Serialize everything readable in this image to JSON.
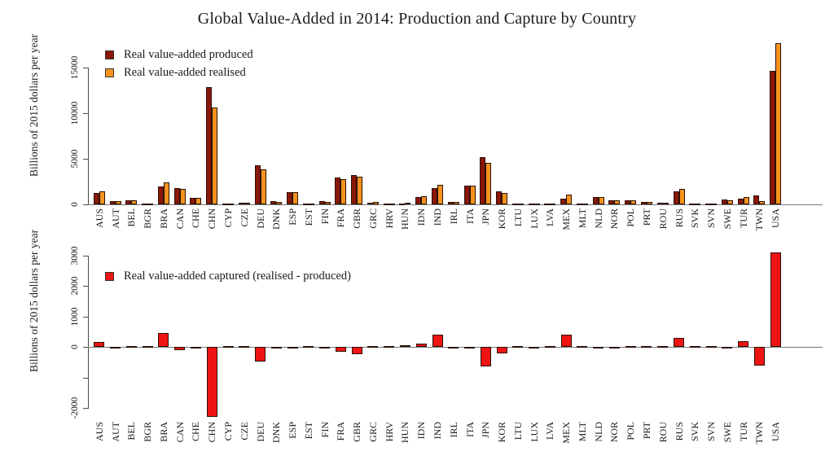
{
  "title": "Global Value-Added in 2014: Production and Capture by Country",
  "colors": {
    "produced": "#8A1708",
    "realised": "#F6921E",
    "captured": "#EE1414",
    "bar_outline": "#2b1105",
    "axis": "#4a4a4a"
  },
  "chart_data": [
    {
      "type": "bar",
      "title": "",
      "xlabel": "",
      "ylabel": "Billions of 2015 dollars per year",
      "ylim": [
        0,
        15000
      ],
      "grid": false,
      "legend_position": "top-left",
      "yticks": [
        {
          "value": 0,
          "label": "0"
        },
        {
          "value": 5000,
          "label": "5000"
        },
        {
          "value": 10000,
          "label": "10000"
        },
        {
          "value": 15000,
          "label": "15000"
        }
      ],
      "categories": [
        "AUS",
        "AUT",
        "BEL",
        "BGR",
        "BRA",
        "CAN",
        "CHE",
        "CHN",
        "CYP",
        "CZE",
        "DEU",
        "DNK",
        "ESP",
        "EST",
        "FIN",
        "FRA",
        "GBR",
        "GRC",
        "HRV",
        "HUN",
        "IDN",
        "IND",
        "IRL",
        "ITA",
        "JPN",
        "KOR",
        "LTU",
        "LUX",
        "LVA",
        "MEX",
        "MLT",
        "NLD",
        "NOR",
        "POL",
        "PRT",
        "ROU",
        "RUS",
        "SVK",
        "SVN",
        "SWE",
        "TUR",
        "TWN",
        "USA"
      ],
      "series": [
        {
          "name": "Real value-added produced",
          "color": "#8A1708",
          "values": [
            1250,
            400,
            470,
            55,
            2000,
            1800,
            700,
            12900,
            25,
            200,
            4300,
            340,
            1350,
            30,
            350,
            2950,
            3250,
            200,
            60,
            130,
            800,
            1750,
            300,
            2050,
            5200,
            1450,
            30,
            40,
            20,
            650,
            10,
            800,
            450,
            420,
            230,
            180,
            1400,
            90,
            40,
            520,
            600,
            950,
            14600
          ]
        },
        {
          "name": "Real value-added realised",
          "color": "#F6921E",
          "values": [
            1400,
            370,
            490,
            60,
            2450,
            1690,
            680,
            10600,
            25,
            210,
            3820,
            310,
            1330,
            30,
            300,
            2780,
            3000,
            240,
            65,
            180,
            900,
            2150,
            270,
            2030,
            4550,
            1250,
            30,
            30,
            20,
            1050,
            10,
            780,
            420,
            450,
            240,
            210,
            1700,
            100,
            40,
            490,
            800,
            350,
            17700
          ]
        }
      ]
    },
    {
      "type": "bar",
      "title": "",
      "xlabel": "",
      "ylabel": "Billions of 2015 dollars per year",
      "ylim": [
        -2400,
        3000
      ],
      "grid": false,
      "legend_position": "top-left",
      "yticks": [
        {
          "value": 3000,
          "label": "3000"
        },
        {
          "value": 2000,
          "label": "2000"
        },
        {
          "value": 1000,
          "label": "1000"
        },
        {
          "value": 0,
          "label": "0"
        },
        {
          "value": -1000,
          "label": ""
        },
        {
          "value": -2000,
          "label": "-2000"
        }
      ],
      "categories": [
        "AUS",
        "AUT",
        "BEL",
        "BGR",
        "BRA",
        "CAN",
        "CHE",
        "CHN",
        "CYP",
        "CZE",
        "DEU",
        "DNK",
        "ESP",
        "EST",
        "FIN",
        "FRA",
        "GBR",
        "GRC",
        "HRV",
        "HUN",
        "IDN",
        "IND",
        "IRL",
        "ITA",
        "JPN",
        "KOR",
        "LTU",
        "LUX",
        "LVA",
        "MEX",
        "MLT",
        "NLD",
        "NOR",
        "POL",
        "PRT",
        "ROU",
        "RUS",
        "SVK",
        "SVN",
        "SWE",
        "TUR",
        "TWN",
        "USA"
      ],
      "series": [
        {
          "name": "Real value-added captured (realised - produced)",
          "color": "#EE1414",
          "values": [
            150,
            -30,
            20,
            5,
            450,
            -110,
            -20,
            -2300,
            0,
            10,
            -480,
            -30,
            -20,
            0,
            -50,
            -170,
            -250,
            40,
            5,
            50,
            100,
            400,
            -30,
            -20,
            -650,
            -200,
            0,
            -10,
            0,
            400,
            0,
            -20,
            -30,
            30,
            10,
            30,
            300,
            10,
            0,
            -30,
            200,
            -600,
            3100
          ]
        }
      ]
    }
  ]
}
